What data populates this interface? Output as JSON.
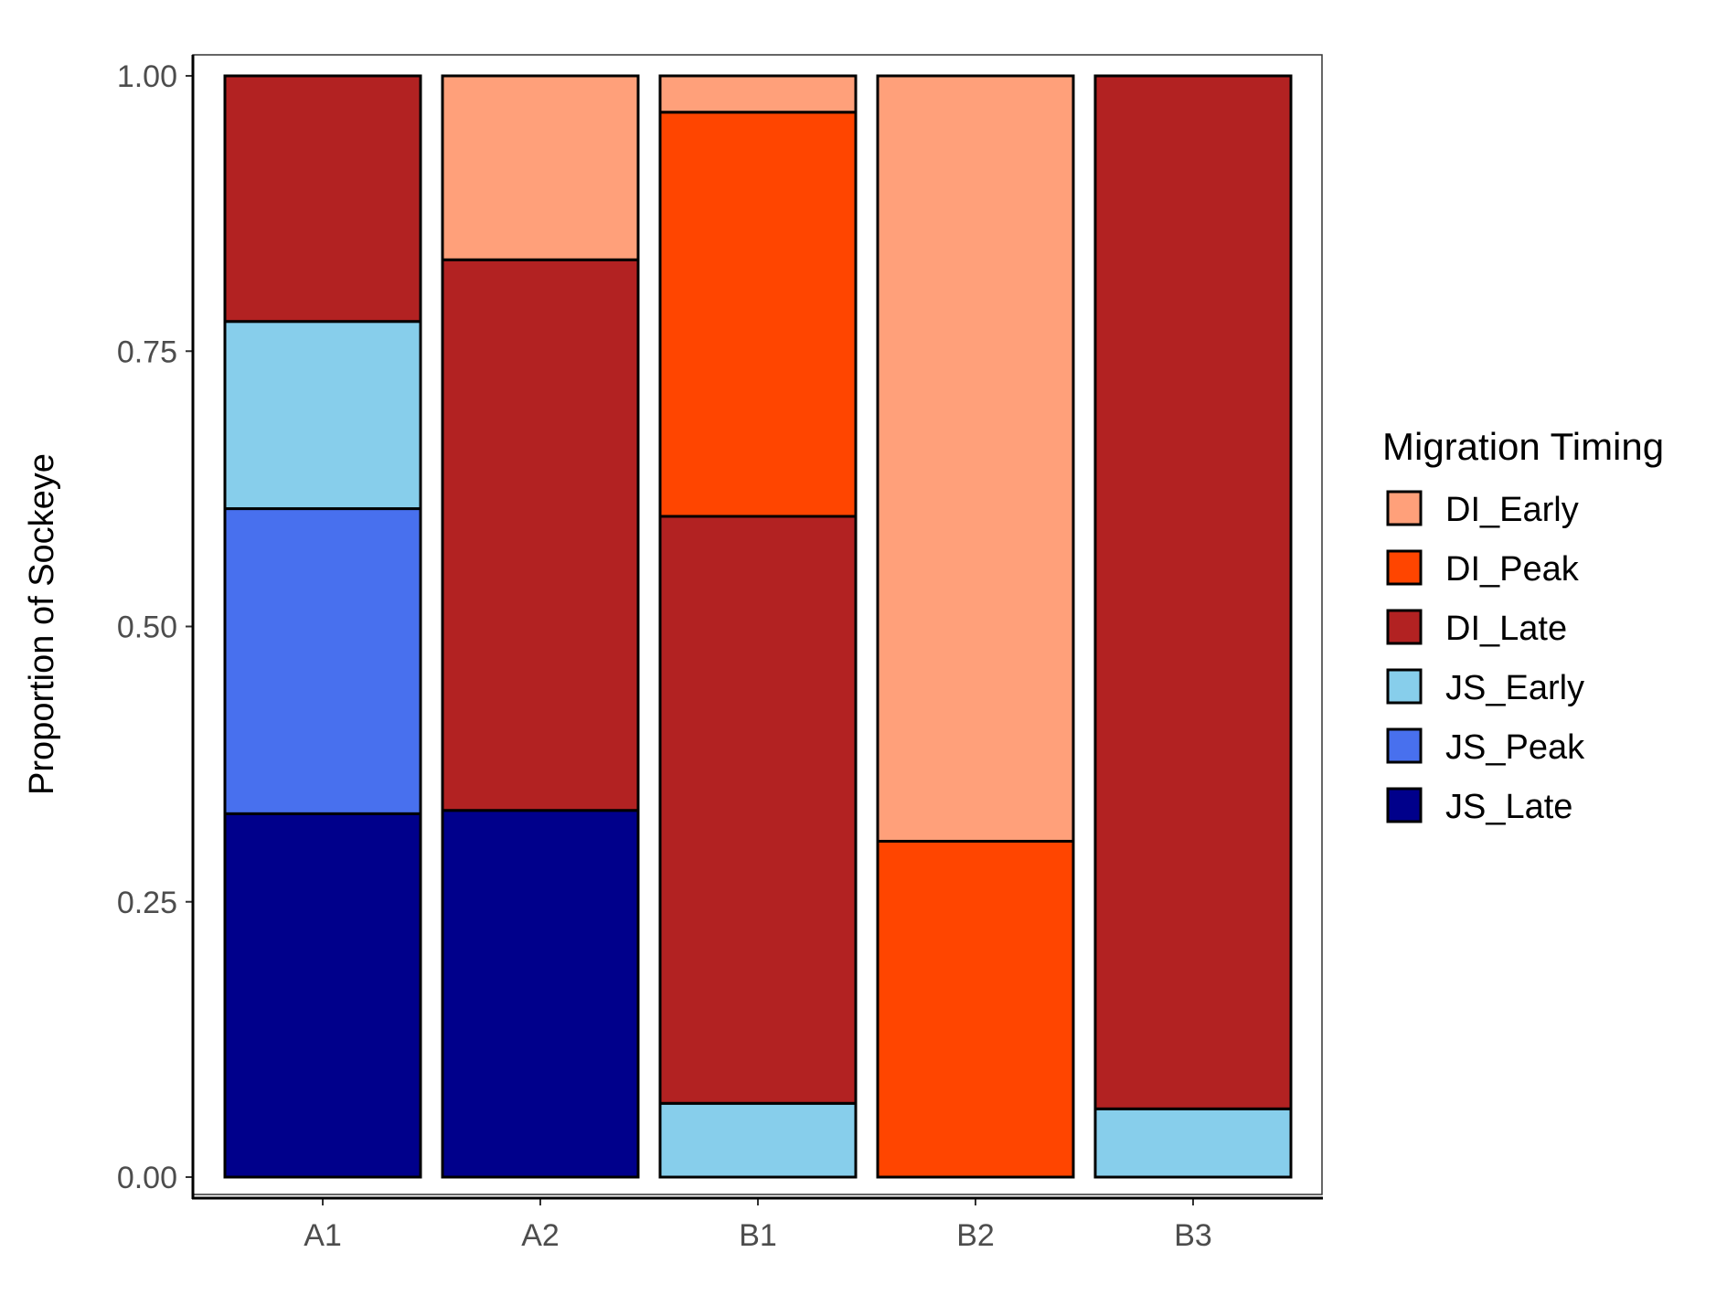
{
  "chart_data": {
    "type": "bar",
    "stacked": true,
    "ylabel": "Proportion of Sockeye",
    "xlabel": "",
    "ylim": [
      0,
      1
    ],
    "y_ticks": [
      "0.00",
      "0.25",
      "0.50",
      "0.75",
      "1.00"
    ],
    "y_tick_values": [
      0,
      0.25,
      0.5,
      0.75,
      1
    ],
    "categories": [
      "A1",
      "A2",
      "B1",
      "B2",
      "B3"
    ],
    "legend_title": "Migration Timing",
    "legend_position": "right",
    "grid": false,
    "series": [
      {
        "name": "DI_Early",
        "color": "#FFA07A",
        "values": [
          0,
          0.167,
          0.033,
          0.695,
          0
        ]
      },
      {
        "name": "DI_Peak",
        "color": "#FF4500",
        "values": [
          0,
          0,
          0.367,
          0.305,
          0
        ]
      },
      {
        "name": "DI_Late",
        "color": "#B22222",
        "values": [
          0.223,
          0.5,
          0.533,
          0,
          0.938
        ]
      },
      {
        "name": "JS_Early",
        "color": "#87CEEB",
        "values": [
          0.17,
          0,
          0.067,
          0,
          0.062
        ]
      },
      {
        "name": "JS_Peak",
        "color": "#4870EE",
        "values": [
          0.277,
          0,
          0,
          0,
          0
        ]
      },
      {
        "name": "JS_Late",
        "color": "#00008B",
        "values": [
          0.33,
          0.333,
          0,
          0,
          0
        ]
      }
    ]
  }
}
